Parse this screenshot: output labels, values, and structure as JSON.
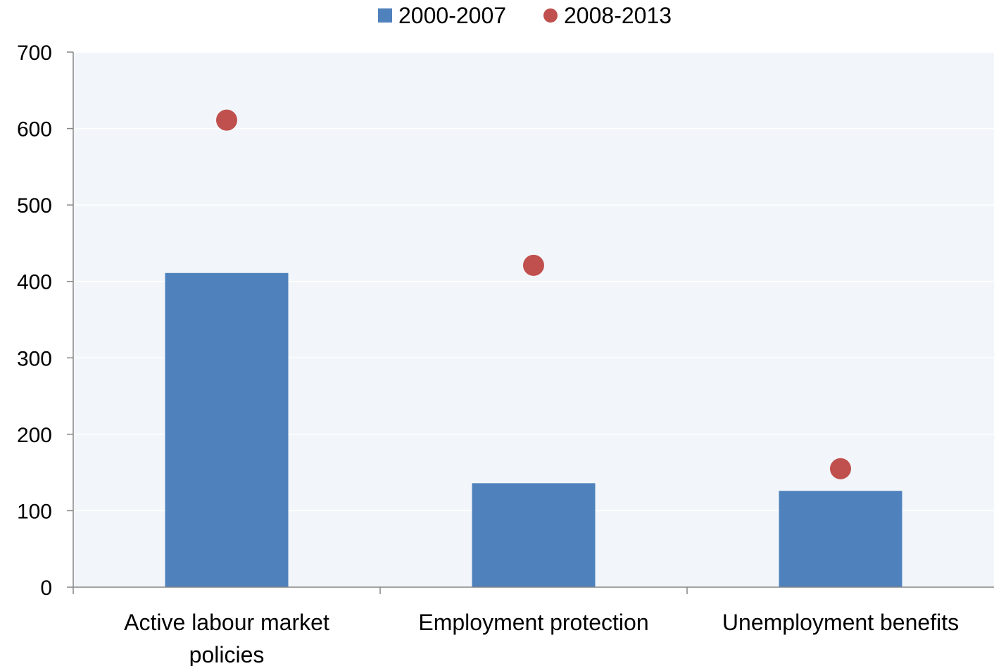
{
  "chart_data": {
    "type": "bar",
    "categories": [
      "Active labour market policies",
      "Employment protection",
      "Unemployment benefits"
    ],
    "category_label_lines": [
      [
        "Active labour market",
        "policies"
      ],
      [
        "Employment protection"
      ],
      [
        "Unemployment benefits"
      ]
    ],
    "series": [
      {
        "name": "2000-2007",
        "mark": "bar",
        "color": "#4f81bd",
        "values": [
          411,
          136,
          126
        ]
      },
      {
        "name": "2008-2013",
        "mark": "point",
        "color": "#c0504d",
        "values": [
          611,
          421,
          155
        ]
      }
    ],
    "ylim": [
      0,
      700
    ],
    "yticks": [
      0,
      100,
      200,
      300,
      400,
      500,
      600,
      700
    ],
    "grid": true,
    "legend_position": "top-center",
    "plot_background": "#f2f6fa",
    "gridline_color": "#ffffff"
  }
}
